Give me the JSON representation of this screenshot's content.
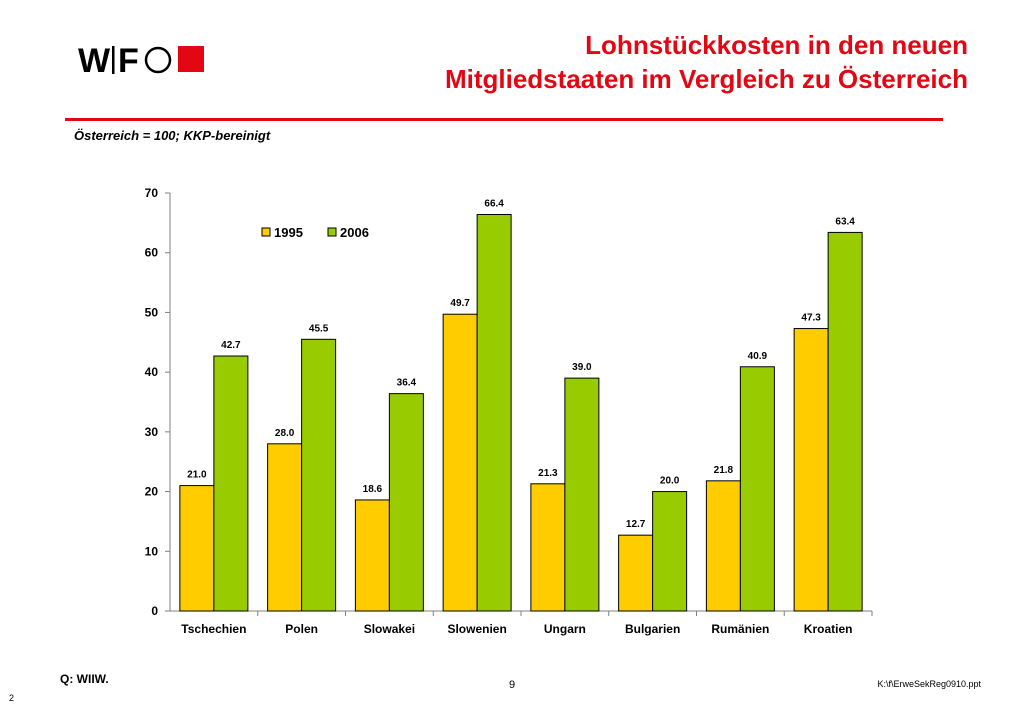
{
  "header": {
    "logo_text": "WIFO",
    "title_line1": "Lohnstückkosten in den neuen",
    "title_line2": "Mitgliedstaaten im Vergleich zu Österreich",
    "subtitle": "Österreich = 100; KKP-bereinigt"
  },
  "footer": {
    "source": "Q: WIIW.",
    "page_number": "9",
    "file_path": "K:\\f\\ErweSekReg0910.ppt",
    "slide_number": "2"
  },
  "colors": {
    "accent": "#e30613",
    "series_1995": "#ffcc00",
    "series_2006": "#99cc00"
  },
  "chart_data": {
    "type": "bar",
    "categories": [
      "Tschechien",
      "Polen",
      "Slowakei",
      "Slowenien",
      "Ungarn",
      "Bulgarien",
      "Rumänien",
      "Kroatien"
    ],
    "series": [
      {
        "name": "1995",
        "values": [
          21.0,
          28.0,
          18.6,
          49.7,
          21.3,
          12.7,
          21.8,
          47.3
        ]
      },
      {
        "name": "2006",
        "values": [
          42.7,
          45.5,
          36.4,
          66.4,
          39.0,
          20.0,
          40.9,
          63.4
        ]
      }
    ],
    "ylim": [
      0,
      70
    ],
    "yticks": [
      0,
      10,
      20,
      30,
      40,
      50,
      60,
      70
    ],
    "grid": false,
    "legend": "top-left"
  }
}
